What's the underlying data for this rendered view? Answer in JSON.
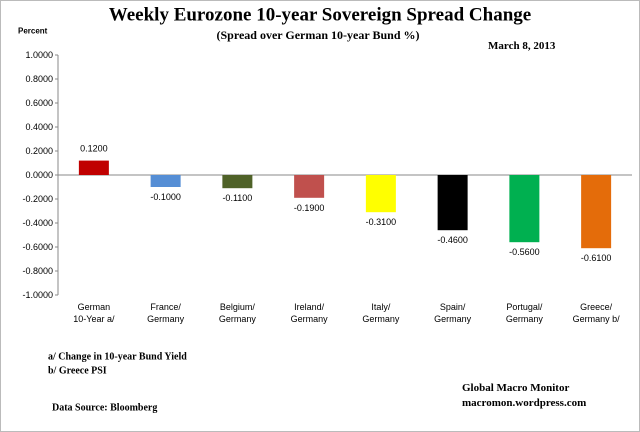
{
  "chart_data": {
    "type": "bar",
    "title": "Weekly Eurozone 10-year Sovereign Spread Change",
    "subtitle": "(Spread over German 10-year Bund  %)",
    "date": "March 8, 2013",
    "y_label": "Percent",
    "categories": [
      "German\n10-Year a/",
      "France/\nGermany",
      "Belgium/\nGermany",
      "Ireland/\nGermany",
      "Italy/\nGermany",
      "Spain/\nGermany",
      "Portugal/\nGermany",
      "Greece/\nGermany b/"
    ],
    "values": [
      0.12,
      -0.1,
      -0.11,
      -0.19,
      -0.31,
      -0.46,
      -0.56,
      -0.61
    ],
    "value_labels": [
      "0.1200",
      "-0.1000",
      "-0.1100",
      "-0.1900",
      "-0.3100",
      "-0.4600",
      "-0.5600",
      "-0.6100"
    ],
    "colors": [
      "#c00000",
      "#558ed5",
      "#4f6228",
      "#c0504d",
      "#ffff00",
      "#000000",
      "#00b050",
      "#e46c0a"
    ],
    "ylim": [
      -1,
      1
    ],
    "yticks": [
      {
        "value": -1,
        "label": "-1.0000"
      },
      {
        "value": -0.8,
        "label": "-0.8000"
      },
      {
        "value": -0.6,
        "label": "-0.6000"
      },
      {
        "value": -0.4,
        "label": "-0.4000"
      },
      {
        "value": -0.2,
        "label": "-0.2000"
      },
      {
        "value": 0,
        "label": "0.0000"
      },
      {
        "value": 0.2,
        "label": "0.2000"
      },
      {
        "value": 0.4,
        "label": "0.4000"
      },
      {
        "value": 0.6,
        "label": "0.6000"
      },
      {
        "value": 0.8,
        "label": "0.8000"
      },
      {
        "value": 1,
        "label": "1.0000"
      }
    ],
    "grid": false,
    "notes": [
      "a/ Change in 10-year Bund Yield",
      "b/ Greece PSI"
    ],
    "source": "Data Source:  Bloomberg",
    "credit": [
      "Global Macro Monitor",
      "macromon.wordpress.com"
    ]
  }
}
